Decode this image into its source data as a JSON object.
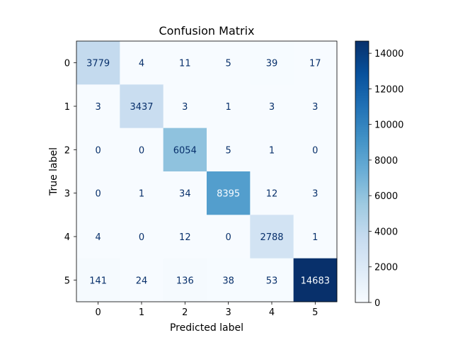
{
  "chart_data": {
    "type": "heatmap",
    "title": "Confusion Matrix",
    "xlabel": "Predicted label",
    "ylabel": "True label",
    "x_categories": [
      "0",
      "1",
      "2",
      "3",
      "4",
      "5"
    ],
    "y_categories": [
      "0",
      "1",
      "2",
      "3",
      "4",
      "5"
    ],
    "values": [
      [
        3779,
        4,
        11,
        5,
        39,
        17
      ],
      [
        3,
        3437,
        3,
        1,
        3,
        3
      ],
      [
        0,
        0,
        6054,
        5,
        1,
        0
      ],
      [
        0,
        1,
        34,
        8395,
        12,
        3
      ],
      [
        4,
        0,
        12,
        0,
        2788,
        1
      ],
      [
        141,
        24,
        136,
        38,
        53,
        14683
      ]
    ],
    "colormap": "Blues",
    "vmin": 0,
    "vmax": 14683,
    "colorbar_ticks": [
      0,
      2000,
      4000,
      6000,
      8000,
      10000,
      12000,
      14000
    ],
    "grid": false
  }
}
